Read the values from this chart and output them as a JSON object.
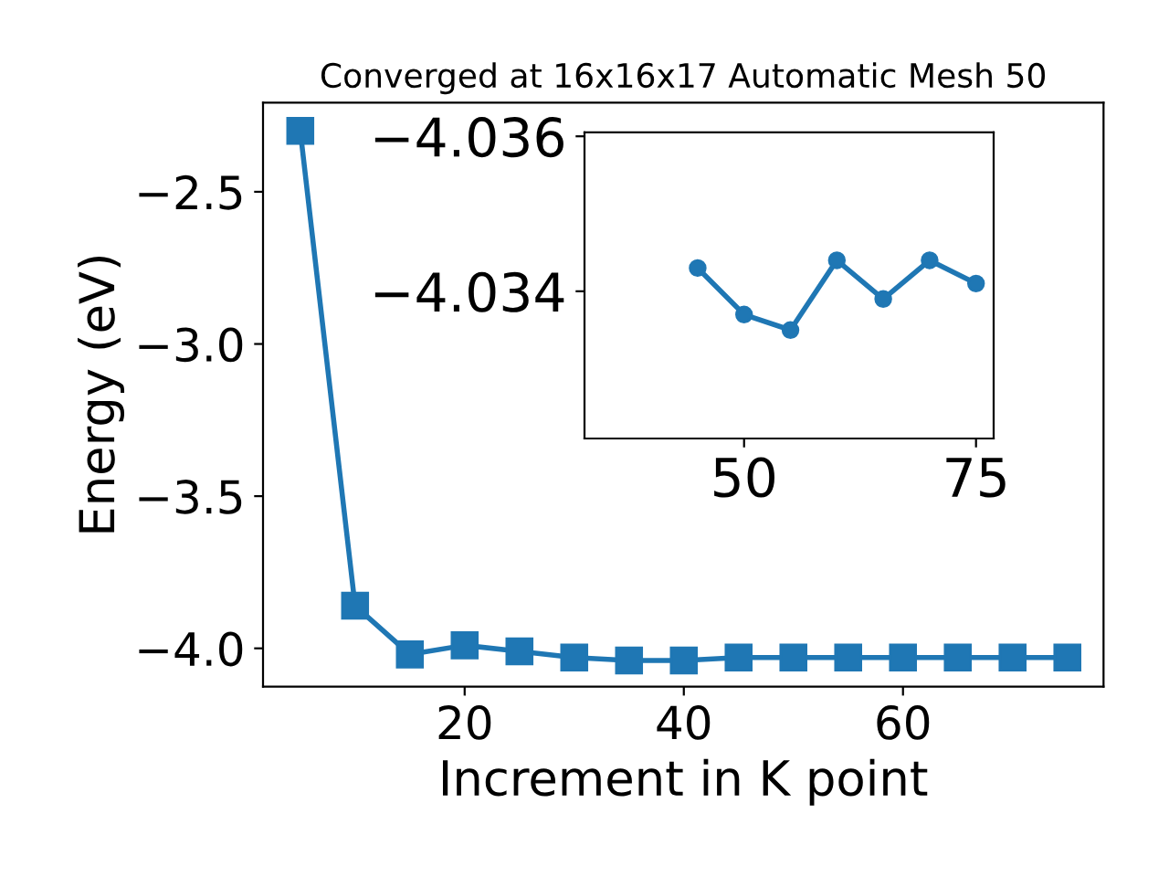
{
  "chart_data": [
    {
      "type": "line",
      "title": "Converged at 16x16x17 Automatic Mesh 50",
      "xlabel": "Increment in K point",
      "ylabel": "Energy (eV)",
      "x": [
        5,
        10,
        15,
        20,
        25,
        30,
        35,
        40,
        45,
        50,
        55,
        60,
        65,
        70,
        75
      ],
      "series": [
        {
          "color": "#1f77b4",
          "values": [
            -2.3,
            -3.86,
            -4.02,
            -3.99,
            -4.01,
            -4.03,
            -4.04,
            -4.04,
            -4.03,
            -4.03,
            -4.03,
            -4.03,
            -4.03,
            -4.03,
            -4.03
          ]
        }
      ],
      "xlim": [
        1.6,
        78.3
      ],
      "ylim": [
        -4.126,
        -2.207
      ],
      "xticks": [
        20,
        40,
        60
      ],
      "yticks": [
        {
          "value": -4,
          "label": "−4.0"
        },
        -3.5,
        {
          "value": -3,
          "label": "−3.0"
        },
        -2.5
      ],
      "marker": "square",
      "line_style": "solid",
      "grid": false,
      "legend": false
    },
    {
      "type": "line",
      "x": [
        45,
        50,
        55,
        60,
        65,
        70,
        75
      ],
      "series": [
        {
          "color": "#1f77b4",
          "values": [
            -4.0343,
            -4.0337,
            -4.0335,
            -4.0344,
            -4.0339,
            -4.0344,
            -4.0341
          ]
        }
      ],
      "xlim": [
        32.8,
        76.9
      ],
      "ylim": [
        -4.0321,
        -4.03605
      ],
      "xticks": [
        50,
        75
      ],
      "yticks": [
        -4.036,
        -4.034
      ],
      "marker": "circle",
      "line_style": "solid",
      "grid": false,
      "legend": false
    }
  ]
}
